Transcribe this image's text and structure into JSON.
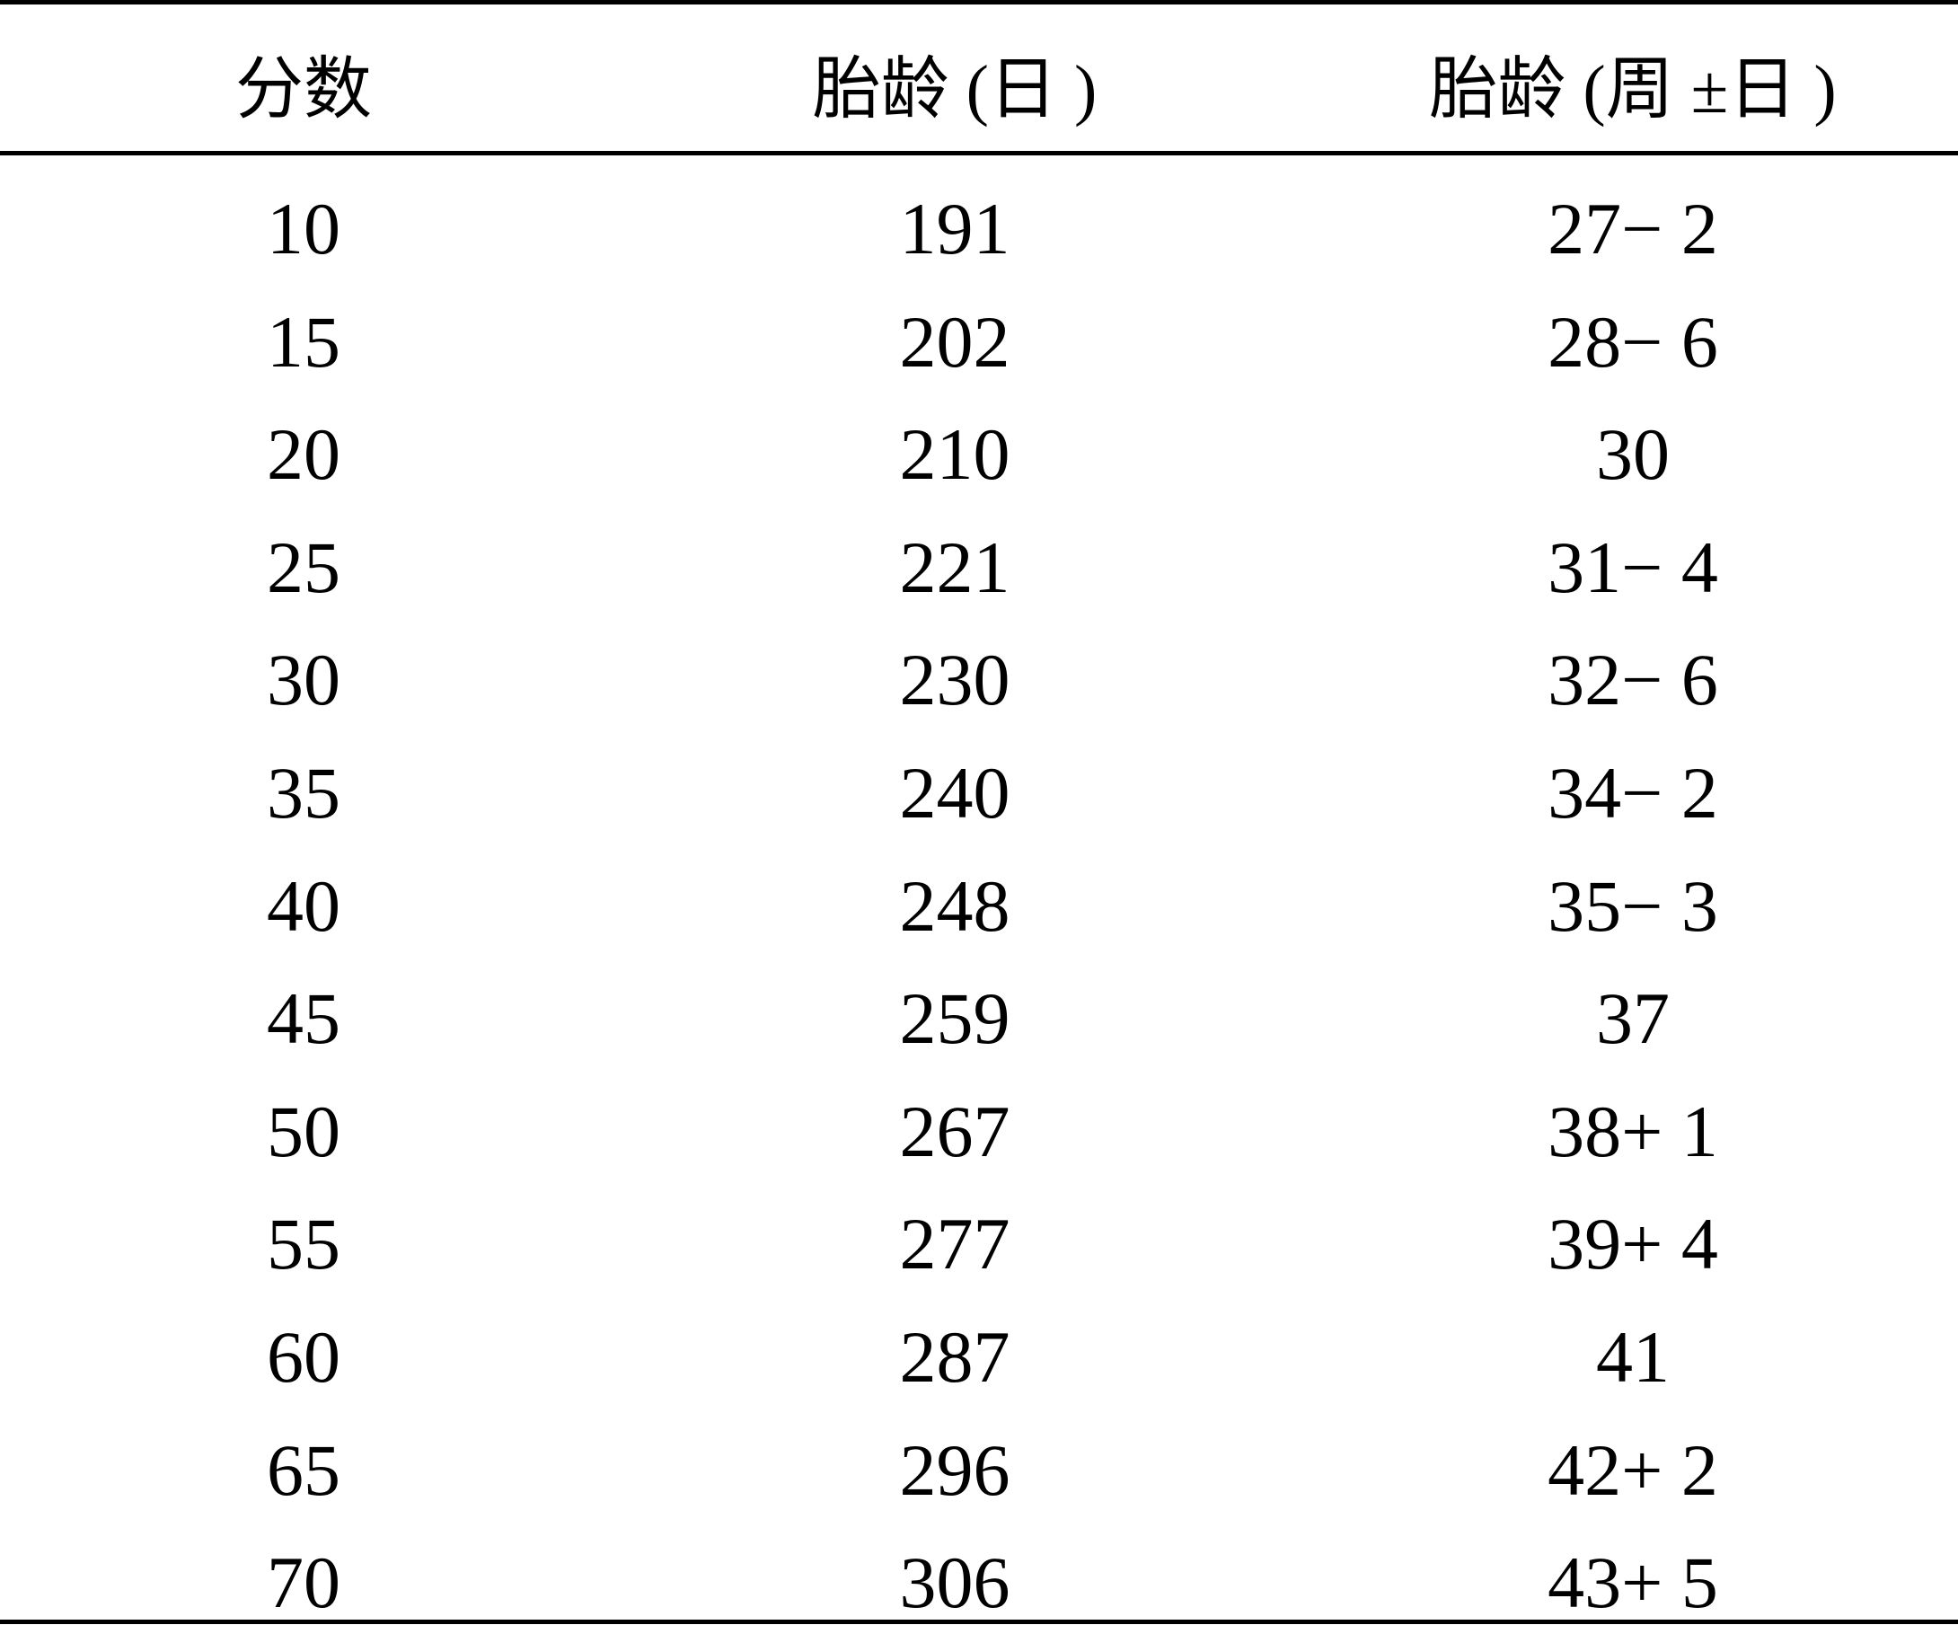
{
  "table": {
    "headers": [
      "分数",
      "胎龄 (日 )",
      "胎龄 (周 ±日 )"
    ],
    "rows": [
      [
        "10",
        "191",
        "27− 2"
      ],
      [
        "15",
        "202",
        "28− 6"
      ],
      [
        "20",
        "210",
        "30"
      ],
      [
        "25",
        "221",
        "31− 4"
      ],
      [
        "30",
        "230",
        "32− 6"
      ],
      [
        "35",
        "240",
        "34− 2"
      ],
      [
        "40",
        "248",
        "35− 3"
      ],
      [
        "45",
        "259",
        "37"
      ],
      [
        "50",
        "267",
        "38+ 1"
      ],
      [
        "55",
        "277",
        "39+ 4"
      ],
      [
        "60",
        "287",
        "41"
      ],
      [
        "65",
        "296",
        "42+ 2"
      ],
      [
        "70",
        "306",
        "43+ 5"
      ]
    ]
  }
}
